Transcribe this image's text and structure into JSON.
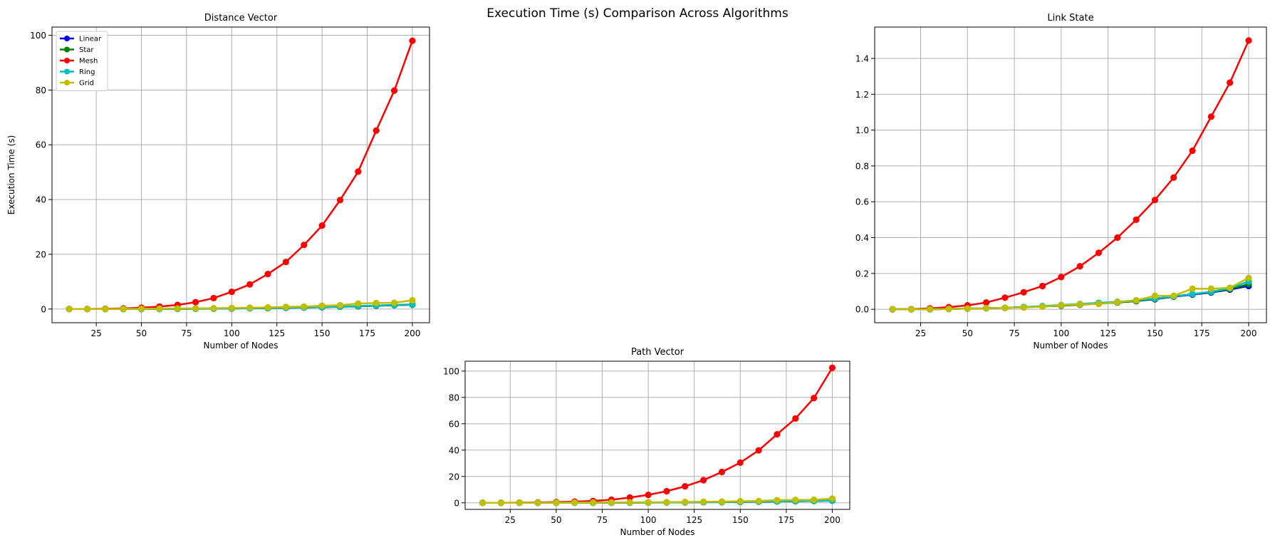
{
  "figure": {
    "suptitle": "Execution Time (s) Comparison Across Algorithms"
  },
  "series_styles": [
    {
      "name": "Linear",
      "color": "#0000ff"
    },
    {
      "name": "Star",
      "color": "#008000"
    },
    {
      "name": "Mesh",
      "color": "#ff0000"
    },
    {
      "name": "Ring",
      "color": "#00bfbf"
    },
    {
      "name": "Grid",
      "color": "#bfbf00"
    }
  ],
  "chart_data": [
    {
      "type": "line",
      "title": "Distance Vector",
      "xlabel": "Number of Nodes",
      "ylabel": "Execution Time (s)",
      "xlim": [
        0.5,
        209.5
      ],
      "ylim": [
        -5,
        103
      ],
      "xticks": [
        25,
        50,
        75,
        100,
        125,
        150,
        175,
        200
      ],
      "yticks": [
        0,
        20,
        40,
        60,
        80,
        100
      ],
      "ytick_labels": [
        "0",
        "20",
        "40",
        "60",
        "80",
        "100"
      ],
      "grid": true,
      "legend": "upper-left",
      "x": [
        10,
        20,
        30,
        40,
        50,
        60,
        70,
        80,
        90,
        100,
        110,
        120,
        130,
        140,
        150,
        160,
        170,
        180,
        190,
        200
      ],
      "series": [
        {
          "name": "Linear",
          "values": [
            0.0,
            0.0,
            0.0,
            0.0,
            0.0,
            0.05,
            0.08,
            0.1,
            0.15,
            0.2,
            0.3,
            0.35,
            0.45,
            0.55,
            0.7,
            0.85,
            1.0,
            1.2,
            1.4,
            1.6
          ]
        },
        {
          "name": "Star",
          "values": [
            0.0,
            0.0,
            0.0,
            0.0,
            0.0,
            0.05,
            0.08,
            0.1,
            0.15,
            0.2,
            0.3,
            0.35,
            0.45,
            0.55,
            0.7,
            0.85,
            1.0,
            1.2,
            1.4,
            1.6
          ]
        },
        {
          "name": "Mesh",
          "values": [
            0.0,
            0.02,
            0.1,
            0.25,
            0.5,
            0.9,
            1.5,
            2.5,
            4.0,
            6.3,
            9.0,
            12.8,
            17.2,
            23.4,
            30.5,
            39.8,
            50.2,
            65.2,
            79.8,
            98.0
          ]
        },
        {
          "name": "Ring",
          "values": [
            0.0,
            0.0,
            0.0,
            0.0,
            0.0,
            0.05,
            0.08,
            0.1,
            0.15,
            0.25,
            0.3,
            0.4,
            0.5,
            0.6,
            0.75,
            0.9,
            1.1,
            1.3,
            1.5,
            1.7
          ]
        },
        {
          "name": "Grid",
          "values": [
            0.0,
            0.0,
            0.0,
            0.05,
            0.1,
            0.15,
            0.2,
            0.25,
            0.3,
            0.4,
            0.5,
            0.6,
            0.8,
            0.9,
            1.2,
            1.4,
            2.0,
            2.2,
            2.3,
            3.2
          ]
        }
      ]
    },
    {
      "type": "line",
      "title": "Link State",
      "xlabel": "Number of Nodes",
      "ylabel": "",
      "xlim": [
        0.5,
        209.5
      ],
      "ylim": [
        -0.075,
        1.575
      ],
      "xticks": [
        25,
        50,
        75,
        100,
        125,
        150,
        175,
        200
      ],
      "yticks": [
        0,
        0.2,
        0.4,
        0.6,
        0.8,
        1.0,
        1.2,
        1.4
      ],
      "ytick_labels": [
        "0.0",
        "0.2",
        "0.4",
        "0.6",
        "0.8",
        "1.0",
        "1.2",
        "1.4"
      ],
      "grid": true,
      "legend": "none",
      "x": [
        10,
        20,
        30,
        40,
        50,
        60,
        70,
        80,
        90,
        100,
        110,
        120,
        130,
        140,
        150,
        160,
        170,
        180,
        190,
        200
      ],
      "series": [
        {
          "name": "Linear",
          "values": [
            0.0,
            0.0,
            0.0,
            0.002,
            0.004,
            0.006,
            0.008,
            0.012,
            0.016,
            0.02,
            0.026,
            0.032,
            0.038,
            0.046,
            0.056,
            0.07,
            0.082,
            0.094,
            0.11,
            0.13
          ]
        },
        {
          "name": "Star",
          "values": [
            0.0,
            0.0,
            0.0,
            0.002,
            0.004,
            0.006,
            0.008,
            0.012,
            0.016,
            0.02,
            0.026,
            0.032,
            0.038,
            0.046,
            0.058,
            0.072,
            0.085,
            0.097,
            0.113,
            0.14
          ]
        },
        {
          "name": "Mesh",
          "values": [
            0.0,
            0.001,
            0.005,
            0.012,
            0.022,
            0.038,
            0.065,
            0.095,
            0.13,
            0.18,
            0.24,
            0.315,
            0.4,
            0.5,
            0.61,
            0.735,
            0.885,
            1.075,
            1.265,
            1.5
          ]
        },
        {
          "name": "Ring",
          "values": [
            0.0,
            0.0,
            0.0,
            0.002,
            0.004,
            0.006,
            0.008,
            0.012,
            0.018,
            0.024,
            0.03,
            0.036,
            0.042,
            0.05,
            0.06,
            0.072,
            0.085,
            0.098,
            0.118,
            0.155
          ]
        },
        {
          "name": "Grid",
          "values": [
            0.0,
            0.0,
            0.0,
            0.002,
            0.004,
            0.006,
            0.008,
            0.01,
            0.015,
            0.022,
            0.028,
            0.03,
            0.04,
            0.05,
            0.075,
            0.075,
            0.115,
            0.115,
            0.12,
            0.175
          ]
        }
      ]
    },
    {
      "type": "line",
      "title": "Path Vector",
      "xlabel": "Number of Nodes",
      "ylabel": "",
      "xlim": [
        0.5,
        209.5
      ],
      "ylim": [
        -5,
        107.5
      ],
      "xticks": [
        25,
        50,
        75,
        100,
        125,
        150,
        175,
        200
      ],
      "yticks": [
        0,
        20,
        40,
        60,
        80,
        100
      ],
      "ytick_labels": [
        "0",
        "20",
        "40",
        "60",
        "80",
        "100"
      ],
      "grid": true,
      "legend": "none",
      "x": [
        10,
        20,
        30,
        40,
        50,
        60,
        70,
        80,
        90,
        100,
        110,
        120,
        130,
        140,
        150,
        160,
        170,
        180,
        190,
        200
      ],
      "series": [
        {
          "name": "Linear",
          "values": [
            0.0,
            0.0,
            0.0,
            0.0,
            0.0,
            0.05,
            0.08,
            0.1,
            0.15,
            0.2,
            0.3,
            0.35,
            0.45,
            0.55,
            0.7,
            0.85,
            1.0,
            1.2,
            1.4,
            1.6
          ]
        },
        {
          "name": "Star",
          "values": [
            0.0,
            0.0,
            0.0,
            0.0,
            0.0,
            0.05,
            0.08,
            0.1,
            0.15,
            0.2,
            0.3,
            0.35,
            0.45,
            0.55,
            0.7,
            0.85,
            1.0,
            1.2,
            1.4,
            1.6
          ]
        },
        {
          "name": "Mesh",
          "values": [
            0.0,
            0.02,
            0.15,
            0.3,
            0.55,
            0.9,
            1.4,
            2.3,
            4.0,
            6.0,
            8.8,
            12.5,
            17.2,
            23.4,
            30.5,
            39.8,
            52.0,
            64.0,
            79.5,
            102.5
          ]
        },
        {
          "name": "Ring",
          "values": [
            0.0,
            0.0,
            0.0,
            0.0,
            0.0,
            0.05,
            0.08,
            0.1,
            0.15,
            0.25,
            0.3,
            0.4,
            0.5,
            0.6,
            0.75,
            0.9,
            1.1,
            1.3,
            1.5,
            1.7
          ]
        },
        {
          "name": "Grid",
          "values": [
            0.0,
            0.0,
            0.0,
            0.05,
            0.1,
            0.15,
            0.2,
            0.25,
            0.3,
            0.4,
            0.5,
            0.6,
            0.8,
            0.9,
            1.2,
            1.4,
            2.0,
            2.2,
            2.3,
            3.2
          ]
        }
      ]
    }
  ]
}
